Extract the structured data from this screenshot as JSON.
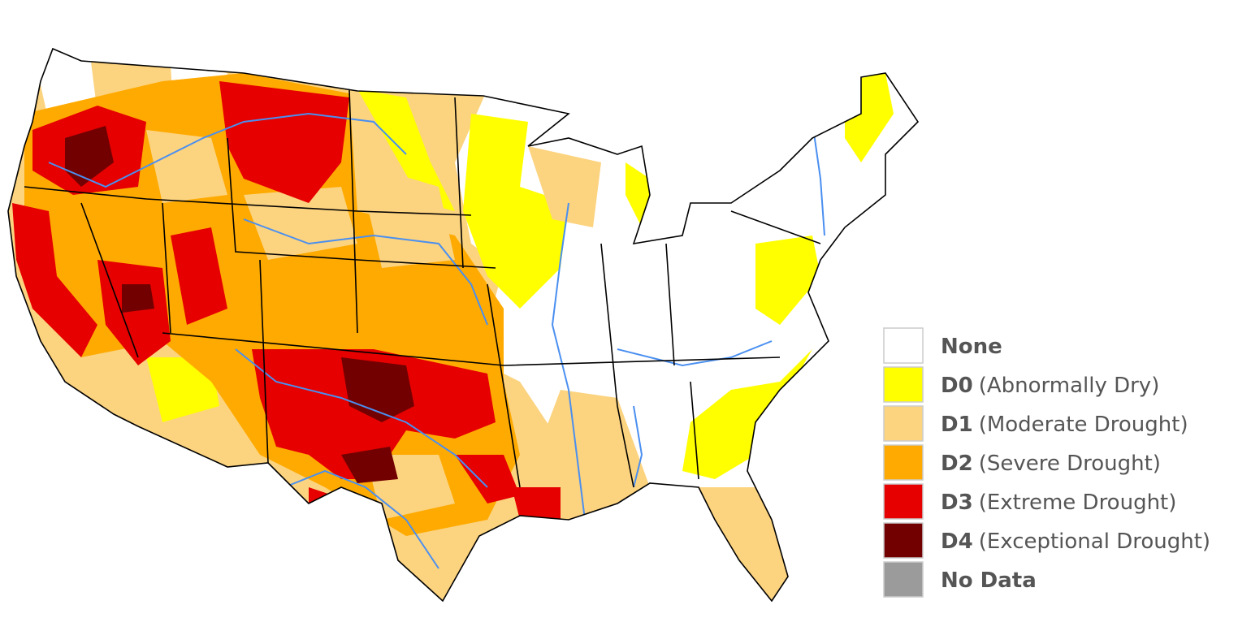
{
  "legend": {
    "items": [
      {
        "code": "None",
        "color": "#ffffff"
      },
      {
        "code": "D0",
        "description": "(Abnormally Dry)",
        "color": "#ffff00"
      },
      {
        "code": "D1",
        "description": "(Moderate Drought)",
        "color": "#fcd37f"
      },
      {
        "code": "D2",
        "description": "(Severe Drought)",
        "color": "#ffaa00"
      },
      {
        "code": "D3",
        "description": "(Extreme Drought)",
        "color": "#e60000"
      },
      {
        "code": "D4",
        "description": "(Exceptional Drought)",
        "color": "#730000"
      },
      {
        "code": "No Data",
        "color": "#9b9b9b"
      }
    ]
  }
}
